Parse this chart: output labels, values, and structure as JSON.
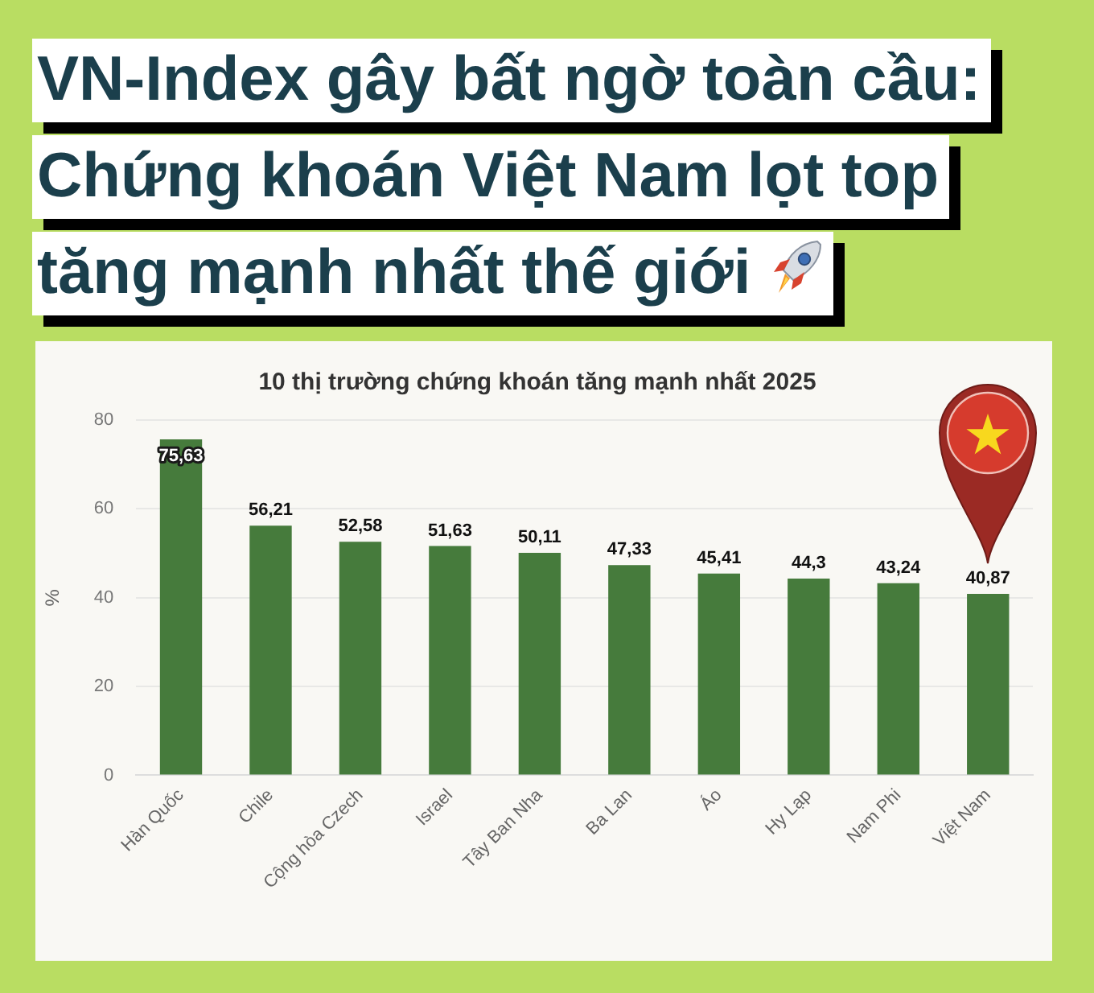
{
  "chart_data": {
    "type": "bar",
    "title": "VN-Index gây bất ngờ toàn cầu: Chứng khoán Việt Nam lọt top tăng mạnh nhất thế giới",
    "subtitle": "10 thị trường chứng khoán tăng mạnh nhất 2025",
    "ylabel": "%",
    "categories": [
      "Hàn Quốc",
      "Chile",
      "Cộng hòa Czech",
      "Israel",
      "Tây Ban Nha",
      "Ba Lan",
      "Áo",
      "Hy Lạp",
      "Nam Phi",
      "Việt Nam"
    ],
    "values": [
      75.63,
      56.21,
      52.58,
      51.63,
      50.11,
      47.33,
      45.41,
      44.3,
      43.24,
      40.87
    ],
    "value_labels": [
      "75,63",
      "56,21",
      "52,58",
      "51,63",
      "50,11",
      "47,33",
      "45,41",
      "44,3",
      "43,24",
      "40,87"
    ],
    "color": "#467b3c",
    "ylim": [
      0,
      80
    ],
    "yticks": [
      0,
      20,
      40,
      60,
      80
    ],
    "grid": "y"
  }
}
